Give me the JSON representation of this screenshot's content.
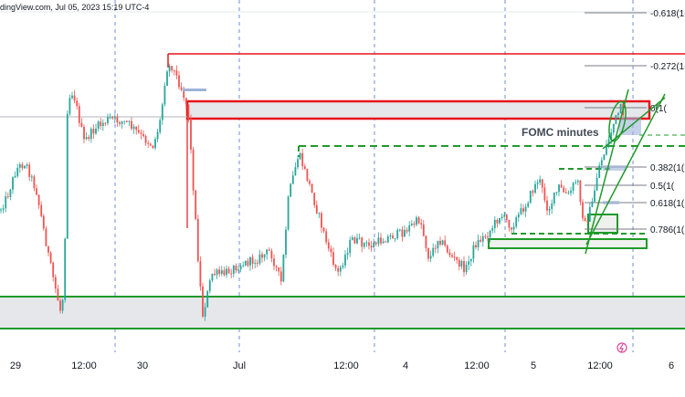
{
  "header": {
    "source_text": "dingView.com, Jul 05, 2023 15:19 UTC-4"
  },
  "chart_data": {
    "type": "candlestick",
    "x_tick_labels": [
      "29",
      "12:00",
      "30",
      "Jul",
      "12:00",
      "4",
      "12:00",
      "5",
      "12:00",
      "6"
    ],
    "fib_levels": [
      {
        "ratio": -0.618,
        "label": "-0.618(1("
      },
      {
        "ratio": -0.272,
        "label": "-0.272(1("
      },
      {
        "ratio": 0,
        "label": "0(1("
      },
      {
        "ratio": 0.382,
        "label": "0.382(1("
      },
      {
        "ratio": 0.5,
        "label": "0.5(1("
      },
      {
        "ratio": 0.618,
        "label": "0.618(1("
      },
      {
        "ratio": 0.786,
        "label": "0.786(1("
      }
    ],
    "annotation": "FOMC minutes",
    "zones": [
      {
        "name": "resistance-zone",
        "color": "#e5141c",
        "style": "box"
      },
      {
        "name": "support-zone",
        "color": "#1f9a2a",
        "style": "box"
      }
    ],
    "colors": {
      "up": "#26a69a",
      "down": "#ef5350",
      "support": "#1f9a2a",
      "resistance": "#e5141c",
      "fib_line": "#787b86"
    }
  }
}
